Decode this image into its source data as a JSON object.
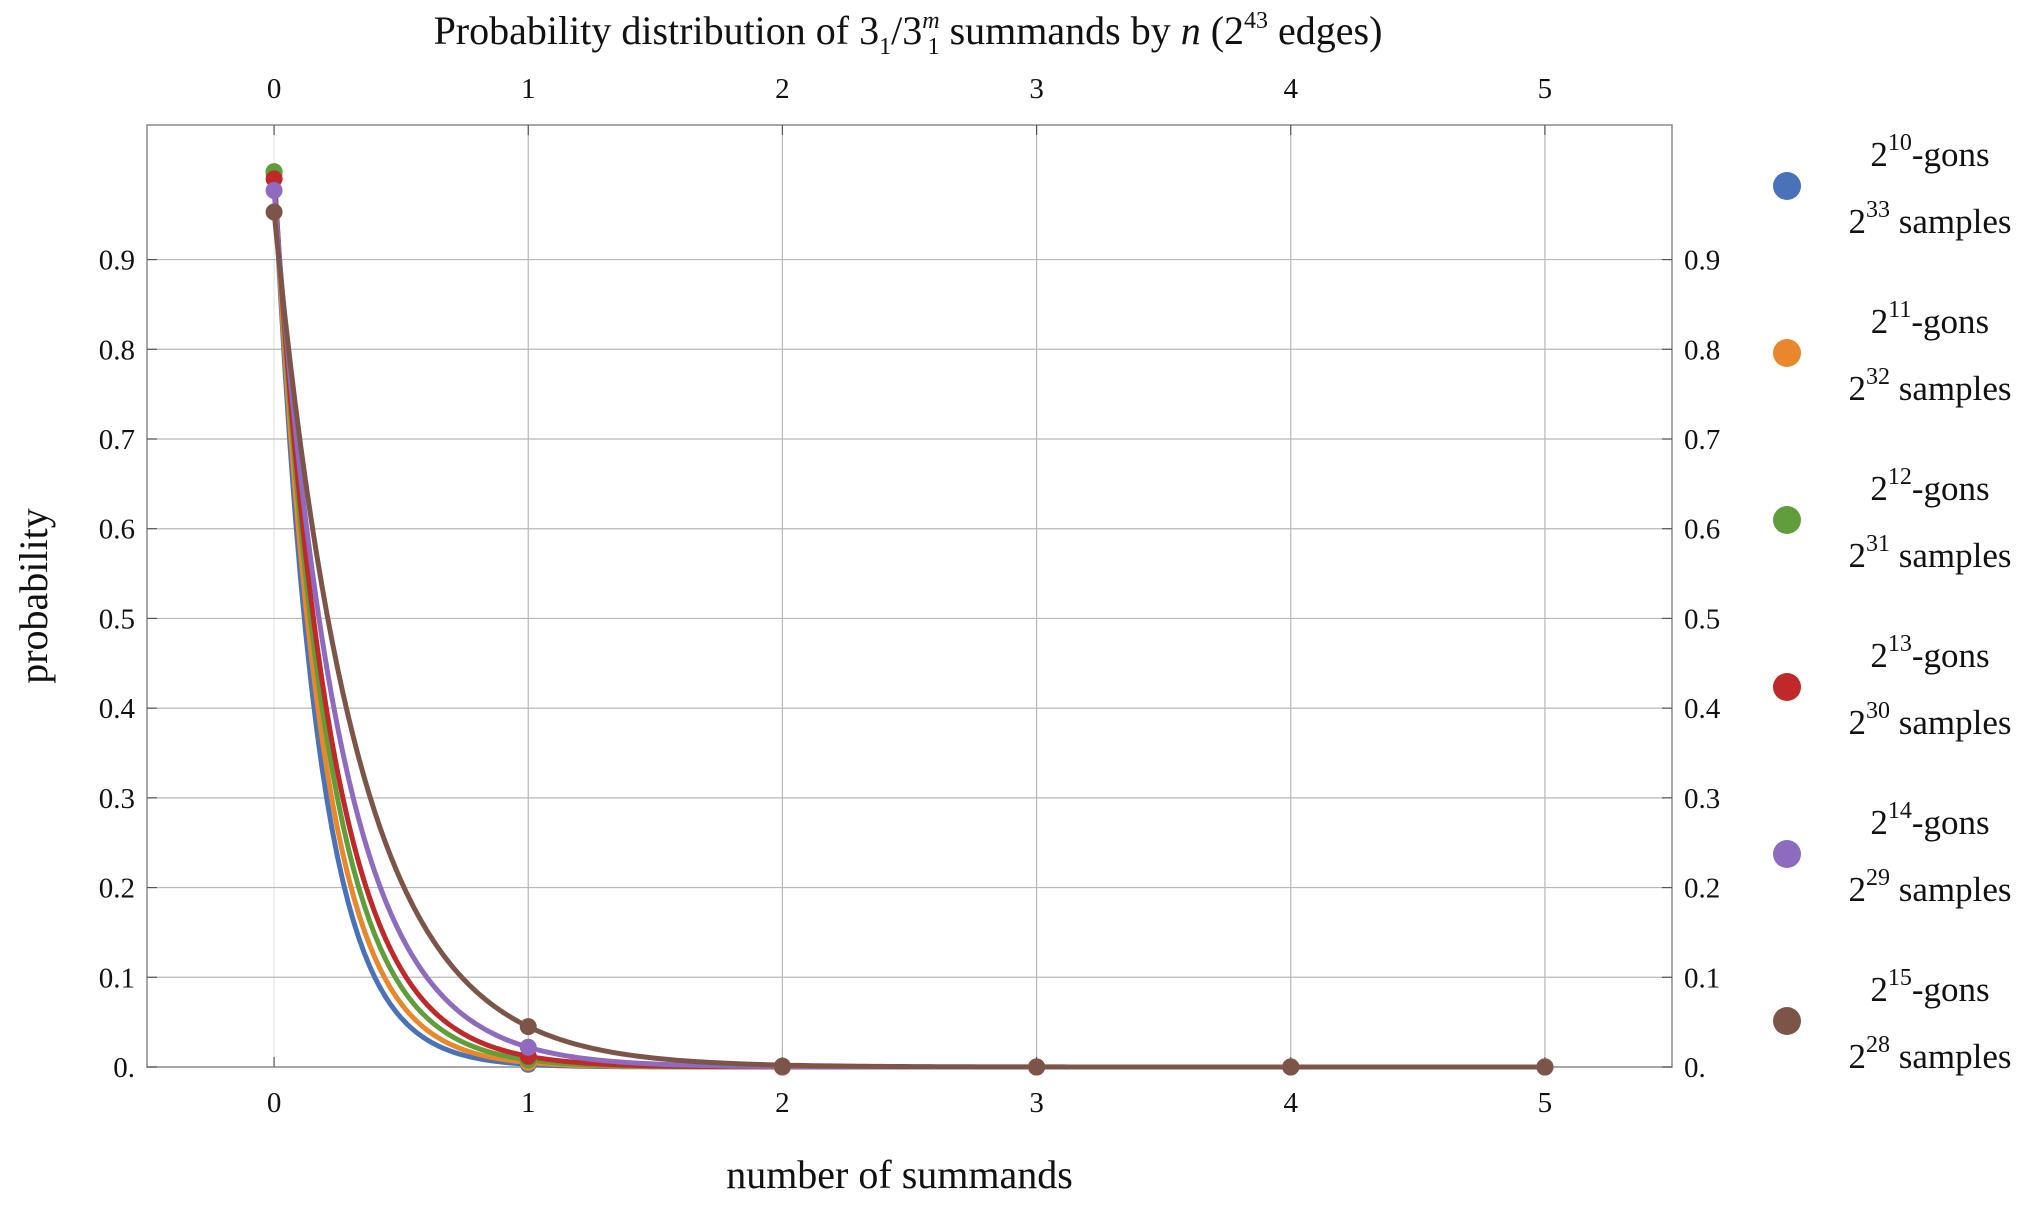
{
  "chart_data": {
    "type": "line",
    "title": {
      "prefix": "Probability distribution of ",
      "knot_base": "3",
      "knot_sub": "1",
      "slash": "/",
      "knot2_base": "3",
      "knot2_sub": "1",
      "knot2_sup": "m",
      "middle": " summands by ",
      "var": "n",
      "paren_open": " (2",
      "edges_exp": "43",
      "suffix": " edges)"
    },
    "xlabel": "number of summands",
    "ylabel": "probability",
    "xlim": [
      -0.5,
      5.5
    ],
    "ylim": [
      0,
      1.05
    ],
    "x_ticks": [
      "0",
      "1",
      "2",
      "3",
      "4",
      "5"
    ],
    "x_tick_values": [
      0,
      1,
      2,
      3,
      4,
      5
    ],
    "y_ticks": [
      "0.",
      "0.1",
      "0.2",
      "0.3",
      "0.4",
      "0.5",
      "0.6",
      "0.7",
      "0.8",
      "0.9"
    ],
    "y_tick_values": [
      0,
      0.1,
      0.2,
      0.3,
      0.4,
      0.5,
      0.6,
      0.7,
      0.8,
      0.9
    ],
    "grid": true,
    "legend_position": "right",
    "x": [
      0,
      1,
      2,
      3,
      4,
      5
    ],
    "series": [
      {
        "name": "2^10-gons, 2^33 samples",
        "base": "2",
        "gons_exp": "10",
        "gons_suffix": "-gons",
        "samples_exp": "33",
        "samples_suffix": " samples",
        "color": "#4a72b8",
        "values": [
          0.997,
          0.003,
          0.0,
          0.0,
          0.0,
          0.0
        ]
      },
      {
        "name": "2^11-gons, 2^32 samples",
        "base": "2",
        "gons_exp": "11",
        "gons_suffix": "-gons",
        "samples_exp": "32",
        "samples_suffix": " samples",
        "color": "#e8872b",
        "values": [
          0.995,
          0.005,
          0.0,
          0.0,
          0.0,
          0.0
        ]
      },
      {
        "name": "2^12-gons, 2^31 samples",
        "base": "2",
        "gons_exp": "12",
        "gons_suffix": "-gons",
        "samples_exp": "31",
        "samples_suffix": " samples",
        "color": "#5f9e3a",
        "values": [
          0.998,
          0.008,
          0.0,
          0.0,
          0.0,
          0.0
        ]
      },
      {
        "name": "2^13-gons, 2^30 samples",
        "base": "2",
        "gons_exp": "13",
        "gons_suffix": "-gons",
        "samples_exp": "30",
        "samples_suffix": " samples",
        "color": "#c0282a",
        "values": [
          0.99,
          0.012,
          0.0,
          0.0,
          0.0,
          0.0
        ]
      },
      {
        "name": "2^14-gons, 2^29 samples",
        "base": "2",
        "gons_exp": "14",
        "gons_suffix": "-gons",
        "samples_exp": "29",
        "samples_suffix": " samples",
        "color": "#8e6bbf",
        "values": [
          0.977,
          0.022,
          0.0005,
          0.0,
          0.0,
          0.0
        ]
      },
      {
        "name": "2^15-gons, 2^28 samples",
        "base": "2",
        "gons_exp": "15",
        "gons_suffix": "-gons",
        "samples_exp": "28",
        "samples_suffix": " samples",
        "color": "#7d5548",
        "values": [
          0.953,
          0.045,
          0.001,
          0.0,
          0.0,
          0.0
        ]
      }
    ]
  }
}
